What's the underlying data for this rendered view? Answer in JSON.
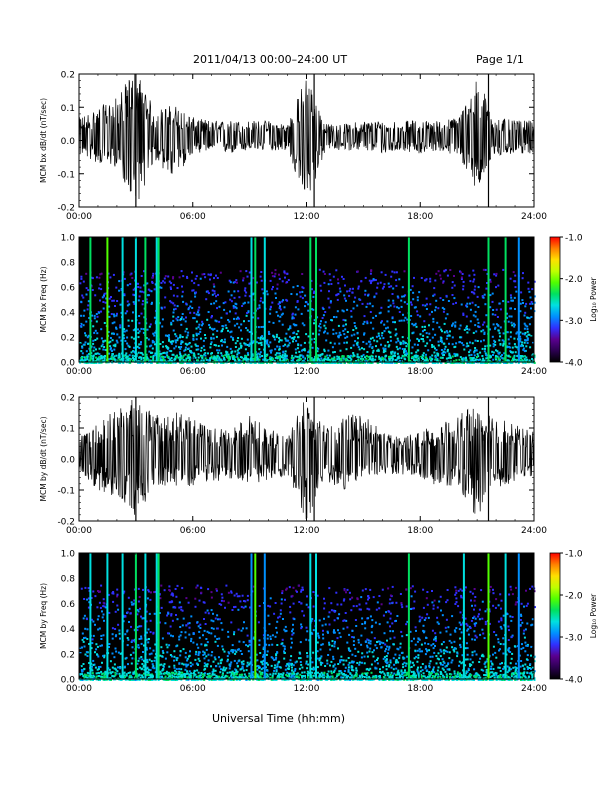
{
  "header": {
    "title": "2011/04/13  00:00–24:00 UT",
    "page": "Page 1/1"
  },
  "footer": {
    "xlabel": "Universal Time (hh:mm)"
  },
  "colorbar": {
    "label": "Log₁₀ Power",
    "ticks": [
      "-1.0",
      "-2.0",
      "-3.0",
      "-4.0"
    ],
    "stops": [
      "#000000",
      "#2b0050",
      "#5a0090",
      "#3030ff",
      "#0090ff",
      "#00e0e0",
      "#00e060",
      "#50ff00",
      "#c0ff00",
      "#ffe000",
      "#ff8000",
      "#ff0000"
    ]
  },
  "x_ticks": [
    "00:00",
    "06:00",
    "12:00",
    "18:00",
    "24:00"
  ],
  "chart_data": [
    {
      "type": "line",
      "ylabel": "MCM bx dB/dt (nT/sec)",
      "x_unit": "hours UT",
      "xlim": [
        0,
        24
      ],
      "ylim": [
        -0.2,
        0.2
      ],
      "y_ticks": [
        "0.2",
        "0.1",
        "0.0",
        "-0.1",
        "-0.2"
      ],
      "series": [
        {
          "x": [
            0,
            1,
            2,
            3,
            4,
            5,
            6,
            7,
            8,
            9,
            10,
            11,
            12,
            13,
            14,
            15,
            16,
            17,
            18,
            19,
            20,
            21,
            22,
            23,
            24
          ],
          "y_envelope_max": [
            0.06,
            0.09,
            0.12,
            0.21,
            0.08,
            0.1,
            0.06,
            0.05,
            0.05,
            0.05,
            0.05,
            0.04,
            0.19,
            0.04,
            0.04,
            0.05,
            0.05,
            0.05,
            0.05,
            0.05,
            0.06,
            0.18,
            0.06,
            0.05,
            0.05
          ],
          "y_envelope_min": [
            -0.05,
            -0.08,
            -0.09,
            -0.21,
            -0.07,
            -0.13,
            -0.05,
            -0.04,
            -0.05,
            -0.04,
            -0.04,
            -0.04,
            -0.21,
            -0.04,
            -0.04,
            -0.04,
            -0.05,
            -0.04,
            -0.05,
            -0.04,
            -0.06,
            -0.16,
            -0.06,
            -0.05,
            -0.05
          ]
        }
      ],
      "spikes_hours": [
        3.0,
        12.4,
        21.6
      ]
    },
    {
      "type": "heatmap",
      "ylabel": "MCM bx Freq (Hz)",
      "xlim": [
        0,
        24
      ],
      "ylim": [
        0.0,
        1.0
      ],
      "y_ticks": [
        "1.0",
        "0.8",
        "0.6",
        "0.4",
        "0.2",
        "0.0"
      ],
      "z_label": "Log₁₀ Power",
      "z_range": [
        -4.0,
        -1.0
      ],
      "vertical_lines_hours": [
        0.6,
        1.5,
        2.3,
        3.0,
        3.5,
        4.1,
        4.2,
        9.1,
        9.3,
        9.8,
        12.2,
        12.5,
        17.4,
        21.6,
        22.5,
        23.2
      ]
    },
    {
      "type": "line",
      "ylabel": "MCM by dB/dt (nT/sec)",
      "x_unit": "hours UT",
      "xlim": [
        0,
        24
      ],
      "ylim": [
        -0.2,
        0.2
      ],
      "y_ticks": [
        "0.2",
        "0.1",
        "0.0",
        "-0.1",
        "-0.2"
      ],
      "series": [
        {
          "x": [
            0,
            1,
            2,
            3,
            4,
            5,
            6,
            7,
            8,
            9,
            10,
            11,
            12,
            13,
            14,
            15,
            16,
            17,
            18,
            19,
            20,
            21,
            22,
            23,
            24
          ],
          "y_envelope_max": [
            0.06,
            0.11,
            0.16,
            0.2,
            0.13,
            0.15,
            0.12,
            0.09,
            0.09,
            0.13,
            0.09,
            0.06,
            0.2,
            0.09,
            0.13,
            0.14,
            0.08,
            0.06,
            0.09,
            0.1,
            0.13,
            0.17,
            0.13,
            0.1,
            0.08
          ],
          "y_envelope_min": [
            -0.06,
            -0.11,
            -0.14,
            -0.2,
            -0.1,
            -0.1,
            -0.1,
            -0.08,
            -0.08,
            -0.09,
            -0.08,
            -0.06,
            -0.21,
            -0.08,
            -0.11,
            -0.07,
            -0.06,
            -0.06,
            -0.07,
            -0.1,
            -0.1,
            -0.21,
            -0.11,
            -0.08,
            -0.07
          ]
        }
      ],
      "spikes_hours": [
        3.0,
        12.4,
        21.6
      ]
    },
    {
      "type": "heatmap",
      "ylabel": "MCM by Freq (Hz)",
      "xlim": [
        0,
        24
      ],
      "ylim": [
        0.0,
        1.0
      ],
      "y_ticks": [
        "1.0",
        "0.8",
        "0.6",
        "0.4",
        "0.2",
        "0.0"
      ],
      "z_label": "Log₁₀ Power",
      "z_range": [
        -4.0,
        -1.0
      ],
      "vertical_lines_hours": [
        0.6,
        1.5,
        2.3,
        3.0,
        3.5,
        4.1,
        4.2,
        9.1,
        9.3,
        9.8,
        12.2,
        12.5,
        17.4,
        20.3,
        21.6,
        22.5,
        23.2
      ]
    }
  ]
}
